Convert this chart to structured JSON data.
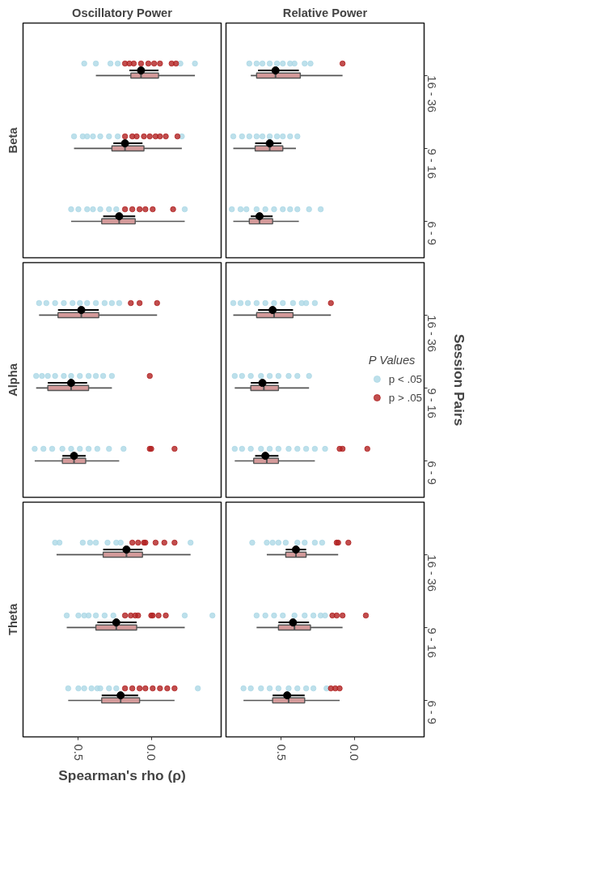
{
  "chart_data": [
    {
      "type": "box",
      "orientation": "horizontal",
      "title": "Oscillatory Power",
      "ylabel": "Beta",
      "tick_labels": false,
      "categories": [
        "16 - 36",
        "9 - 16",
        "6 - 9"
      ],
      "xlim": [
        0.88,
        -0.48
      ],
      "marker": "circle",
      "boxes": [
        {
          "low": -0.3,
          "q1": -0.05,
          "median": 0.07,
          "q3": 0.14,
          "high": 0.38
        },
        {
          "low": -0.21,
          "q1": 0.05,
          "median": 0.18,
          "q3": 0.27,
          "high": 0.53
        },
        {
          "low": -0.23,
          "q1": 0.11,
          "median": 0.22,
          "q3": 0.34,
          "high": 0.55
        }
      ],
      "series": [
        {
          "type": "scatter",
          "color": "#add8e6",
          "x": [
            "6 - 9",
            "6 - 9",
            "6 - 9",
            "6 - 9",
            "6 - 9",
            "6 - 9",
            "6 - 9",
            "6 - 9",
            "9 - 16",
            "9 - 16",
            "9 - 16",
            "9 - 16",
            "9 - 16",
            "9 - 16",
            "9 - 16",
            "9 - 16",
            "16 - 36",
            "16 - 36",
            "16 - 36",
            "16 - 36",
            "16 - 36",
            "16 - 36"
          ],
          "values": [
            0.55,
            0.5,
            0.44,
            0.4,
            0.35,
            0.29,
            0.24,
            -0.23,
            0.53,
            0.47,
            0.44,
            0.4,
            0.35,
            0.29,
            0.23,
            -0.21,
            0.46,
            0.38,
            0.28,
            0.23,
            -0.2,
            -0.3
          ]
        },
        {
          "type": "scatter",
          "color": "#b22222",
          "x": [
            "6 - 9",
            "6 - 9",
            "6 - 9",
            "6 - 9",
            "6 - 9",
            "6 - 9",
            "9 - 16",
            "9 - 16",
            "9 - 16",
            "9 - 16",
            "9 - 16",
            "9 - 16",
            "9 - 16",
            "9 - 16",
            "9 - 16",
            "16 - 36",
            "16 - 36",
            "16 - 36",
            "16 - 36",
            "16 - 36",
            "16 - 36",
            "16 - 36",
            "16 - 36",
            "16 - 36"
          ],
          "values": [
            0.18,
            0.13,
            0.08,
            0.04,
            -0.01,
            -0.15,
            0.18,
            0.13,
            0.1,
            0.05,
            0.01,
            -0.03,
            -0.06,
            -0.1,
            -0.18,
            0.18,
            0.15,
            0.12,
            0.07,
            0.02,
            -0.02,
            -0.06,
            -0.14,
            -0.17
          ]
        },
        {
          "type": "scatter",
          "color": "#000000",
          "x": [
            "16 - 36",
            "9 - 16",
            "6 - 9"
          ],
          "values": [
            0.07,
            0.18,
            0.22
          ],
          "errors": [
            [
              -0.05,
              0.15
            ],
            [
              0.06,
              0.26
            ],
            [
              0.11,
              0.33
            ]
          ]
        }
      ]
    },
    {
      "type": "box",
      "orientation": "horizontal",
      "title": "Relative Power",
      "tick_labels": "y",
      "categories": [
        "16 - 36",
        "9 - 16",
        "6 - 9"
      ],
      "xlim": [
        0.88,
        -0.48
      ],
      "marker": "circle",
      "boxes": [
        {
          "low": 0.08,
          "q1": 0.37,
          "median": 0.54,
          "q3": 0.67,
          "high": 0.71
        },
        {
          "low": 0.4,
          "q1": 0.49,
          "median": 0.58,
          "q3": 0.68,
          "high": 0.83
        },
        {
          "low": 0.38,
          "q1": 0.56,
          "median": 0.65,
          "q3": 0.72,
          "high": 0.83
        }
      ],
      "series": [
        {
          "type": "scatter",
          "color": "#add8e6",
          "x": [
            "6 - 9",
            "6 - 9",
            "6 - 9",
            "6 - 9",
            "6 - 9",
            "6 - 9",
            "6 - 9",
            "6 - 9",
            "6 - 9",
            "6 - 9",
            "6 - 9",
            "9 - 16",
            "9 - 16",
            "9 - 16",
            "9 - 16",
            "9 - 16",
            "9 - 16",
            "9 - 16",
            "9 - 16",
            "9 - 16",
            "9 - 16",
            "16 - 36",
            "16 - 36",
            "16 - 36",
            "16 - 36",
            "16 - 36",
            "16 - 36",
            "16 - 36",
            "16 - 36",
            "16 - 36",
            "16 - 36"
          ],
          "values": [
            0.84,
            0.78,
            0.74,
            0.67,
            0.61,
            0.55,
            0.49,
            0.44,
            0.39,
            0.31,
            0.23,
            0.83,
            0.77,
            0.72,
            0.67,
            0.63,
            0.58,
            0.53,
            0.49,
            0.44,
            0.39,
            0.72,
            0.67,
            0.63,
            0.58,
            0.53,
            0.49,
            0.44,
            0.41,
            0.34,
            0.3
          ]
        },
        {
          "type": "scatter",
          "color": "#b22222",
          "x": [
            "16 - 36"
          ],
          "values": [
            0.08
          ]
        },
        {
          "type": "scatter",
          "color": "#000000",
          "x": [
            "16 - 36",
            "9 - 16",
            "6 - 9"
          ],
          "values": [
            0.54,
            0.58,
            0.65
          ],
          "errors": [
            [
              0.38,
              0.66
            ],
            [
              0.5,
              0.68
            ],
            [
              0.56,
              0.71
            ]
          ]
        }
      ]
    },
    {
      "type": "box",
      "orientation": "horizontal",
      "ylabel": "Alpha",
      "tick_labels": false,
      "categories": [
        "16 - 36",
        "9 - 16",
        "6 - 9"
      ],
      "xlim": [
        0.88,
        -0.48
      ],
      "marker": "circle",
      "boxes": [
        {
          "low": -0.04,
          "q1": 0.36,
          "median": 0.48,
          "q3": 0.64,
          "high": 0.77
        },
        {
          "low": 0.27,
          "q1": 0.43,
          "median": 0.55,
          "q3": 0.71,
          "high": 0.79
        },
        {
          "low": 0.22,
          "q1": 0.45,
          "median": 0.53,
          "q3": 0.61,
          "high": 0.8
        }
      ],
      "series": [
        {
          "type": "scatter",
          "color": "#add8e6",
          "x": [
            "6 - 9",
            "6 - 9",
            "6 - 9",
            "6 - 9",
            "6 - 9",
            "6 - 9",
            "6 - 9",
            "6 - 9",
            "6 - 9",
            "6 - 9",
            "9 - 16",
            "9 - 16",
            "9 - 16",
            "9 - 16",
            "9 - 16",
            "9 - 16",
            "9 - 16",
            "9 - 16",
            "9 - 16",
            "9 - 16",
            "9 - 16",
            "16 - 36",
            "16 - 36",
            "16 - 36",
            "16 - 36",
            "16 - 36",
            "16 - 36",
            "16 - 36",
            "16 - 36",
            "16 - 36",
            "16 - 36",
            "16 - 36"
          ],
          "values": [
            0.8,
            0.74,
            0.68,
            0.61,
            0.55,
            0.49,
            0.43,
            0.37,
            0.29,
            0.19,
            0.79,
            0.75,
            0.71,
            0.66,
            0.6,
            0.55,
            0.49,
            0.43,
            0.38,
            0.33,
            0.27,
            0.77,
            0.72,
            0.66,
            0.6,
            0.54,
            0.49,
            0.44,
            0.38,
            0.32,
            0.27,
            0.22
          ]
        },
        {
          "type": "scatter",
          "color": "#b22222",
          "x": [
            "6 - 9",
            "6 - 9",
            "6 - 9",
            "9 - 16",
            "16 - 36",
            "16 - 36",
            "16 - 36"
          ],
          "values": [
            0.01,
            0.0,
            -0.16,
            0.01,
            0.14,
            0.08,
            -0.04
          ]
        },
        {
          "type": "scatter",
          "color": "#000000",
          "x": [
            "16 - 36",
            "9 - 16",
            "6 - 9"
          ],
          "values": [
            0.48,
            0.55,
            0.53
          ],
          "errors": [
            [
              0.36,
              0.64
            ],
            [
              0.44,
              0.71
            ],
            [
              0.45,
              0.61
            ]
          ]
        }
      ]
    },
    {
      "type": "box",
      "orientation": "horizontal",
      "y2label": "Session Pairs",
      "legend": "right",
      "legend_title": "P Values",
      "tick_labels": "y",
      "categories": [
        "16 - 36",
        "9 - 16",
        "6 - 9"
      ],
      "xlim": [
        0.88,
        -0.48
      ],
      "marker": "circle",
      "boxes": [
        {
          "low": 0.16,
          "q1": 0.42,
          "median": 0.55,
          "q3": 0.67,
          "high": 0.83
        },
        {
          "low": 0.31,
          "q1": 0.52,
          "median": 0.62,
          "q3": 0.71,
          "high": 0.82
        },
        {
          "low": 0.27,
          "q1": 0.52,
          "median": 0.6,
          "q3": 0.69,
          "high": 0.82
        }
      ],
      "series": [
        {
          "type": "scatter",
          "name": "p < .05",
          "color": "#add8e6",
          "x": [
            "6 - 9",
            "6 - 9",
            "6 - 9",
            "6 - 9",
            "6 - 9",
            "6 - 9",
            "6 - 9",
            "6 - 9",
            "6 - 9",
            "6 - 9",
            "6 - 9",
            "9 - 16",
            "9 - 16",
            "9 - 16",
            "9 - 16",
            "9 - 16",
            "9 - 16",
            "9 - 16",
            "9 - 16",
            "9 - 16",
            "16 - 36",
            "16 - 36",
            "16 - 36",
            "16 - 36",
            "16 - 36",
            "16 - 36",
            "16 - 36",
            "16 - 36",
            "16 - 36",
            "16 - 36",
            "16 - 36"
          ],
          "values": [
            0.82,
            0.77,
            0.71,
            0.64,
            0.58,
            0.52,
            0.45,
            0.39,
            0.33,
            0.27,
            0.2,
            0.82,
            0.77,
            0.71,
            0.64,
            0.58,
            0.52,
            0.45,
            0.39,
            0.31,
            0.83,
            0.78,
            0.73,
            0.67,
            0.61,
            0.55,
            0.49,
            0.42,
            0.36,
            0.33,
            0.27
          ]
        },
        {
          "type": "scatter",
          "name": "p > .05",
          "color": "#b22222",
          "x": [
            "6 - 9",
            "6 - 9",
            "6 - 9",
            "16 - 36"
          ],
          "values": [
            0.1,
            0.08,
            -0.09,
            0.16
          ]
        },
        {
          "type": "scatter",
          "color": "#000000",
          "x": [
            "16 - 36",
            "9 - 16",
            "6 - 9"
          ],
          "values": [
            0.56,
            0.63,
            0.61
          ],
          "errors": [
            [
              0.42,
              0.66
            ],
            [
              0.52,
              0.71
            ],
            [
              0.52,
              0.68
            ]
          ]
        }
      ]
    },
    {
      "type": "box",
      "orientation": "horizontal",
      "ylabel": "Theta",
      "xlabel": "Spearman's rho (ρ)",
      "tick_labels": "x",
      "categories": [
        "16 - 36",
        "9 - 16",
        "6 - 9"
      ],
      "xlim": [
        0.88,
        -0.48
      ],
      "xticks": [
        0.5,
        {
          "value": 0,
          "label": "0.0"
        }
      ],
      "marker": "circle",
      "boxes": [
        {
          "low": -0.27,
          "q1": 0.06,
          "median": 0.17,
          "q3": 0.33,
          "high": 0.65
        },
        {
          "low": -0.23,
          "q1": 0.1,
          "median": 0.24,
          "q3": 0.38,
          "high": 0.58
        },
        {
          "low": -0.16,
          "q1": 0.08,
          "median": 0.21,
          "q3": 0.34,
          "high": 0.57
        }
      ],
      "series": [
        {
          "type": "scatter",
          "color": "#add8e6",
          "x": [
            "6 - 9",
            "6 - 9",
            "6 - 9",
            "6 - 9",
            "6 - 9",
            "6 - 9",
            "6 - 9",
            "6 - 9",
            "6 - 9",
            "9 - 16",
            "9 - 16",
            "9 - 16",
            "9 - 16",
            "9 - 16",
            "9 - 16",
            "9 - 16",
            "9 - 16",
            "9 - 16",
            "16 - 36",
            "16 - 36",
            "16 - 36",
            "16 - 36",
            "16 - 36",
            "16 - 36",
            "16 - 36",
            "16 - 36",
            "16 - 36"
          ],
          "values": [
            0.57,
            0.5,
            0.46,
            0.41,
            0.37,
            0.35,
            0.29,
            0.24,
            -0.32,
            0.58,
            0.5,
            0.46,
            0.43,
            0.38,
            0.32,
            0.26,
            -0.23,
            -0.42,
            0.66,
            0.63,
            0.47,
            0.42,
            0.38,
            0.3,
            0.24,
            0.21,
            -0.27
          ]
        },
        {
          "type": "scatter",
          "color": "#b22222",
          "x": [
            "6 - 9",
            "6 - 9",
            "6 - 9",
            "6 - 9",
            "6 - 9",
            "6 - 9",
            "6 - 9",
            "6 - 9",
            "9 - 16",
            "9 - 16",
            "9 - 16",
            "9 - 16",
            "9 - 16",
            "9 - 16",
            "9 - 16",
            "9 - 16",
            "16 - 36",
            "16 - 36",
            "16 - 36",
            "16 - 36",
            "16 - 36",
            "16 - 36",
            "16 - 36"
          ],
          "values": [
            0.18,
            0.13,
            0.08,
            0.04,
            -0.01,
            -0.06,
            -0.11,
            -0.16,
            0.18,
            0.14,
            0.11,
            0.09,
            0.0,
            -0.01,
            -0.05,
            -0.1,
            0.13,
            0.09,
            0.05,
            0.04,
            -0.03,
            -0.09,
            -0.16
          ]
        },
        {
          "type": "scatter",
          "color": "#000000",
          "x": [
            "16 - 36",
            "9 - 16",
            "6 - 9"
          ],
          "values": [
            0.17,
            0.24,
            0.21
          ],
          "errors": [
            [
              0.06,
              0.33
            ],
            [
              0.1,
              0.37
            ],
            [
              0.09,
              0.34
            ]
          ]
        }
      ]
    },
    {
      "type": "box",
      "orientation": "horizontal",
      "categories": [
        "16 - 36",
        "9 - 16",
        "6 - 9"
      ],
      "xlim": [
        0.88,
        -0.48
      ],
      "xticks": [
        0.5,
        {
          "value": 0,
          "label": "0.0"
        }
      ],
      "marker": "circle",
      "boxes": [
        {
          "low": 0.11,
          "q1": 0.33,
          "median": 0.4,
          "q3": 0.47,
          "high": 0.6
        },
        {
          "low": 0.08,
          "q1": 0.3,
          "median": 0.41,
          "q3": 0.52,
          "high": 0.67
        },
        {
          "low": 0.1,
          "q1": 0.34,
          "median": 0.45,
          "q3": 0.56,
          "high": 0.76
        }
      ],
      "series": [
        {
          "type": "scatter",
          "color": "#add8e6",
          "x": [
            "6 - 9",
            "6 - 9",
            "6 - 9",
            "6 - 9",
            "6 - 9",
            "6 - 9",
            "6 - 9",
            "6 - 9",
            "6 - 9",
            "6 - 9",
            "9 - 16",
            "9 - 16",
            "9 - 16",
            "9 - 16",
            "9 - 16",
            "9 - 16",
            "9 - 16",
            "9 - 16",
            "9 - 16",
            "16 - 36",
            "16 - 36",
            "16 - 36",
            "16 - 36",
            "16 - 36",
            "16 - 36",
            "16 - 36",
            "16 - 36",
            "16 - 36"
          ],
          "values": [
            0.76,
            0.71,
            0.64,
            0.58,
            0.52,
            0.45,
            0.39,
            0.33,
            0.28,
            0.19,
            0.67,
            0.61,
            0.55,
            0.49,
            0.41,
            0.34,
            0.28,
            0.23,
            0.2,
            0.7,
            0.6,
            0.56,
            0.52,
            0.47,
            0.39,
            0.34,
            0.27,
            0.22
          ]
        },
        {
          "type": "scatter",
          "color": "#b22222",
          "x": [
            "6 - 9",
            "6 - 9",
            "6 - 9",
            "9 - 16",
            "9 - 16",
            "9 - 16",
            "9 - 16",
            "16 - 36",
            "16 - 36",
            "16 - 36"
          ],
          "values": [
            0.16,
            0.13,
            0.1,
            0.15,
            0.12,
            0.08,
            -0.08,
            0.12,
            0.11,
            0.04
          ]
        },
        {
          "type": "scatter",
          "color": "#000000",
          "x": [
            "16 - 36",
            "9 - 16",
            "6 - 9"
          ],
          "values": [
            0.4,
            0.42,
            0.46
          ],
          "errors": [
            [
              0.33,
              0.47
            ],
            [
              0.31,
              0.52
            ],
            [
              0.34,
              0.56
            ]
          ]
        }
      ]
    }
  ]
}
